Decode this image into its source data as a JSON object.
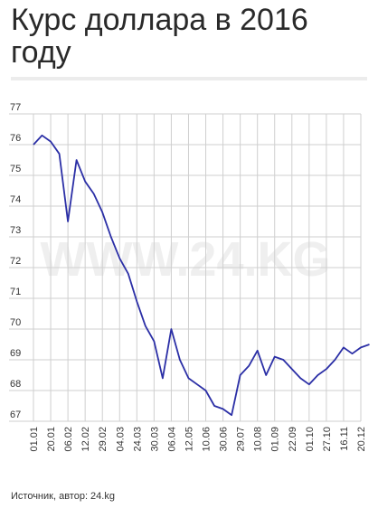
{
  "header": {
    "title": "Курс доллара в 2016 году"
  },
  "footer": {
    "source": "Источник, автор: 24.kg"
  },
  "watermark": "WWW.24.KG",
  "chart_data": {
    "type": "line",
    "title": "Курс доллара в 2016 году",
    "xlabel": "",
    "ylabel": "",
    "ylim": [
      67,
      77
    ],
    "yticks": [
      67,
      68,
      69,
      70,
      71,
      72,
      73,
      74,
      75,
      76,
      77
    ],
    "xtick_labels": [
      "01.01",
      "20.01",
      "06.02",
      "12.02",
      "29.02",
      "04.03",
      "24.03",
      "30.03",
      "06.04",
      "12.05",
      "10.06",
      "30.06",
      "29.07",
      "10.08",
      "01.09",
      "22.09",
      "01.10",
      "27.10",
      "16.11",
      "20.12"
    ],
    "grid": true,
    "color": "#2b2fa6",
    "x_index": [
      0,
      0.5,
      1,
      1.5,
      2,
      2.5,
      3,
      3.5,
      4,
      4.5,
      5,
      5.5,
      6,
      6.5,
      7,
      7.5,
      8,
      8.5,
      9,
      9.5,
      10,
      10.5,
      11,
      11.5,
      12,
      12.5,
      13,
      13.5,
      14,
      14.5,
      15,
      15.5,
      16,
      16.5,
      17,
      17.5,
      18,
      18.5,
      19,
      19.5
    ],
    "values": [
      76.0,
      76.3,
      76.1,
      75.7,
      73.5,
      75.5,
      74.8,
      74.4,
      73.8,
      73.0,
      72.3,
      71.8,
      70.9,
      70.1,
      69.6,
      68.4,
      70.0,
      69.0,
      68.4,
      68.2,
      68.0,
      67.5,
      67.4,
      67.2,
      68.5,
      68.8,
      69.3,
      68.5,
      69.1,
      69.0,
      68.7,
      68.4,
      68.2,
      68.5,
      68.7,
      69.0,
      69.4,
      69.2,
      69.4,
      69.5
    ]
  }
}
